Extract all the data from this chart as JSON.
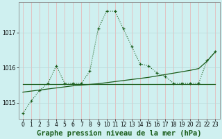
{
  "title": "Graphe pression niveau de la mer (hPa)",
  "background_color": "#cff0f0",
  "line_color": "#1a5c1a",
  "x_values": [
    0,
    1,
    2,
    3,
    4,
    5,
    6,
    7,
    8,
    9,
    10,
    11,
    12,
    13,
    14,
    15,
    16,
    17,
    18,
    19,
    20,
    21,
    22,
    23
  ],
  "y_dotted": [
    1014.7,
    1015.05,
    1015.35,
    1015.55,
    1016.05,
    1015.55,
    1015.55,
    1015.55,
    1015.9,
    1017.1,
    1017.6,
    1017.6,
    1017.1,
    1016.6,
    1016.1,
    1016.05,
    1015.85,
    1015.75,
    1015.55,
    1015.55,
    1015.55,
    1015.55,
    1016.2,
    1016.45
  ],
  "y_flat": [
    1015.52,
    1015.52,
    1015.52,
    1015.52,
    1015.52,
    1015.52,
    1015.52,
    1015.52,
    1015.52,
    1015.52,
    1015.52,
    1015.52,
    1015.52,
    1015.52,
    1015.52,
    1015.52,
    1015.52,
    1015.52,
    1015.52,
    1015.52,
    1015.52,
    1015.52,
    1015.52,
    1015.52
  ],
  "y_trend": [
    1015.3,
    1015.33,
    1015.36,
    1015.39,
    1015.42,
    1015.45,
    1015.48,
    1015.5,
    1015.52,
    1015.54,
    1015.57,
    1015.6,
    1015.63,
    1015.66,
    1015.69,
    1015.72,
    1015.76,
    1015.8,
    1015.84,
    1015.88,
    1015.92,
    1015.97,
    1016.18,
    1016.45
  ],
  "ylim": [
    1014.55,
    1017.85
  ],
  "yticks": [
    1015,
    1016,
    1017
  ],
  "xlim": [
    -0.5,
    23.5
  ],
  "xticks": [
    0,
    1,
    2,
    3,
    4,
    5,
    6,
    7,
    8,
    9,
    10,
    11,
    12,
    13,
    14,
    15,
    16,
    17,
    18,
    19,
    20,
    21,
    22,
    23
  ],
  "title_fontsize": 7.5,
  "tick_fontsize": 5.5,
  "grid_color_v": "#e8b0b0",
  "grid_color_h": "#b8d8d8",
  "spine_color": "#888888"
}
